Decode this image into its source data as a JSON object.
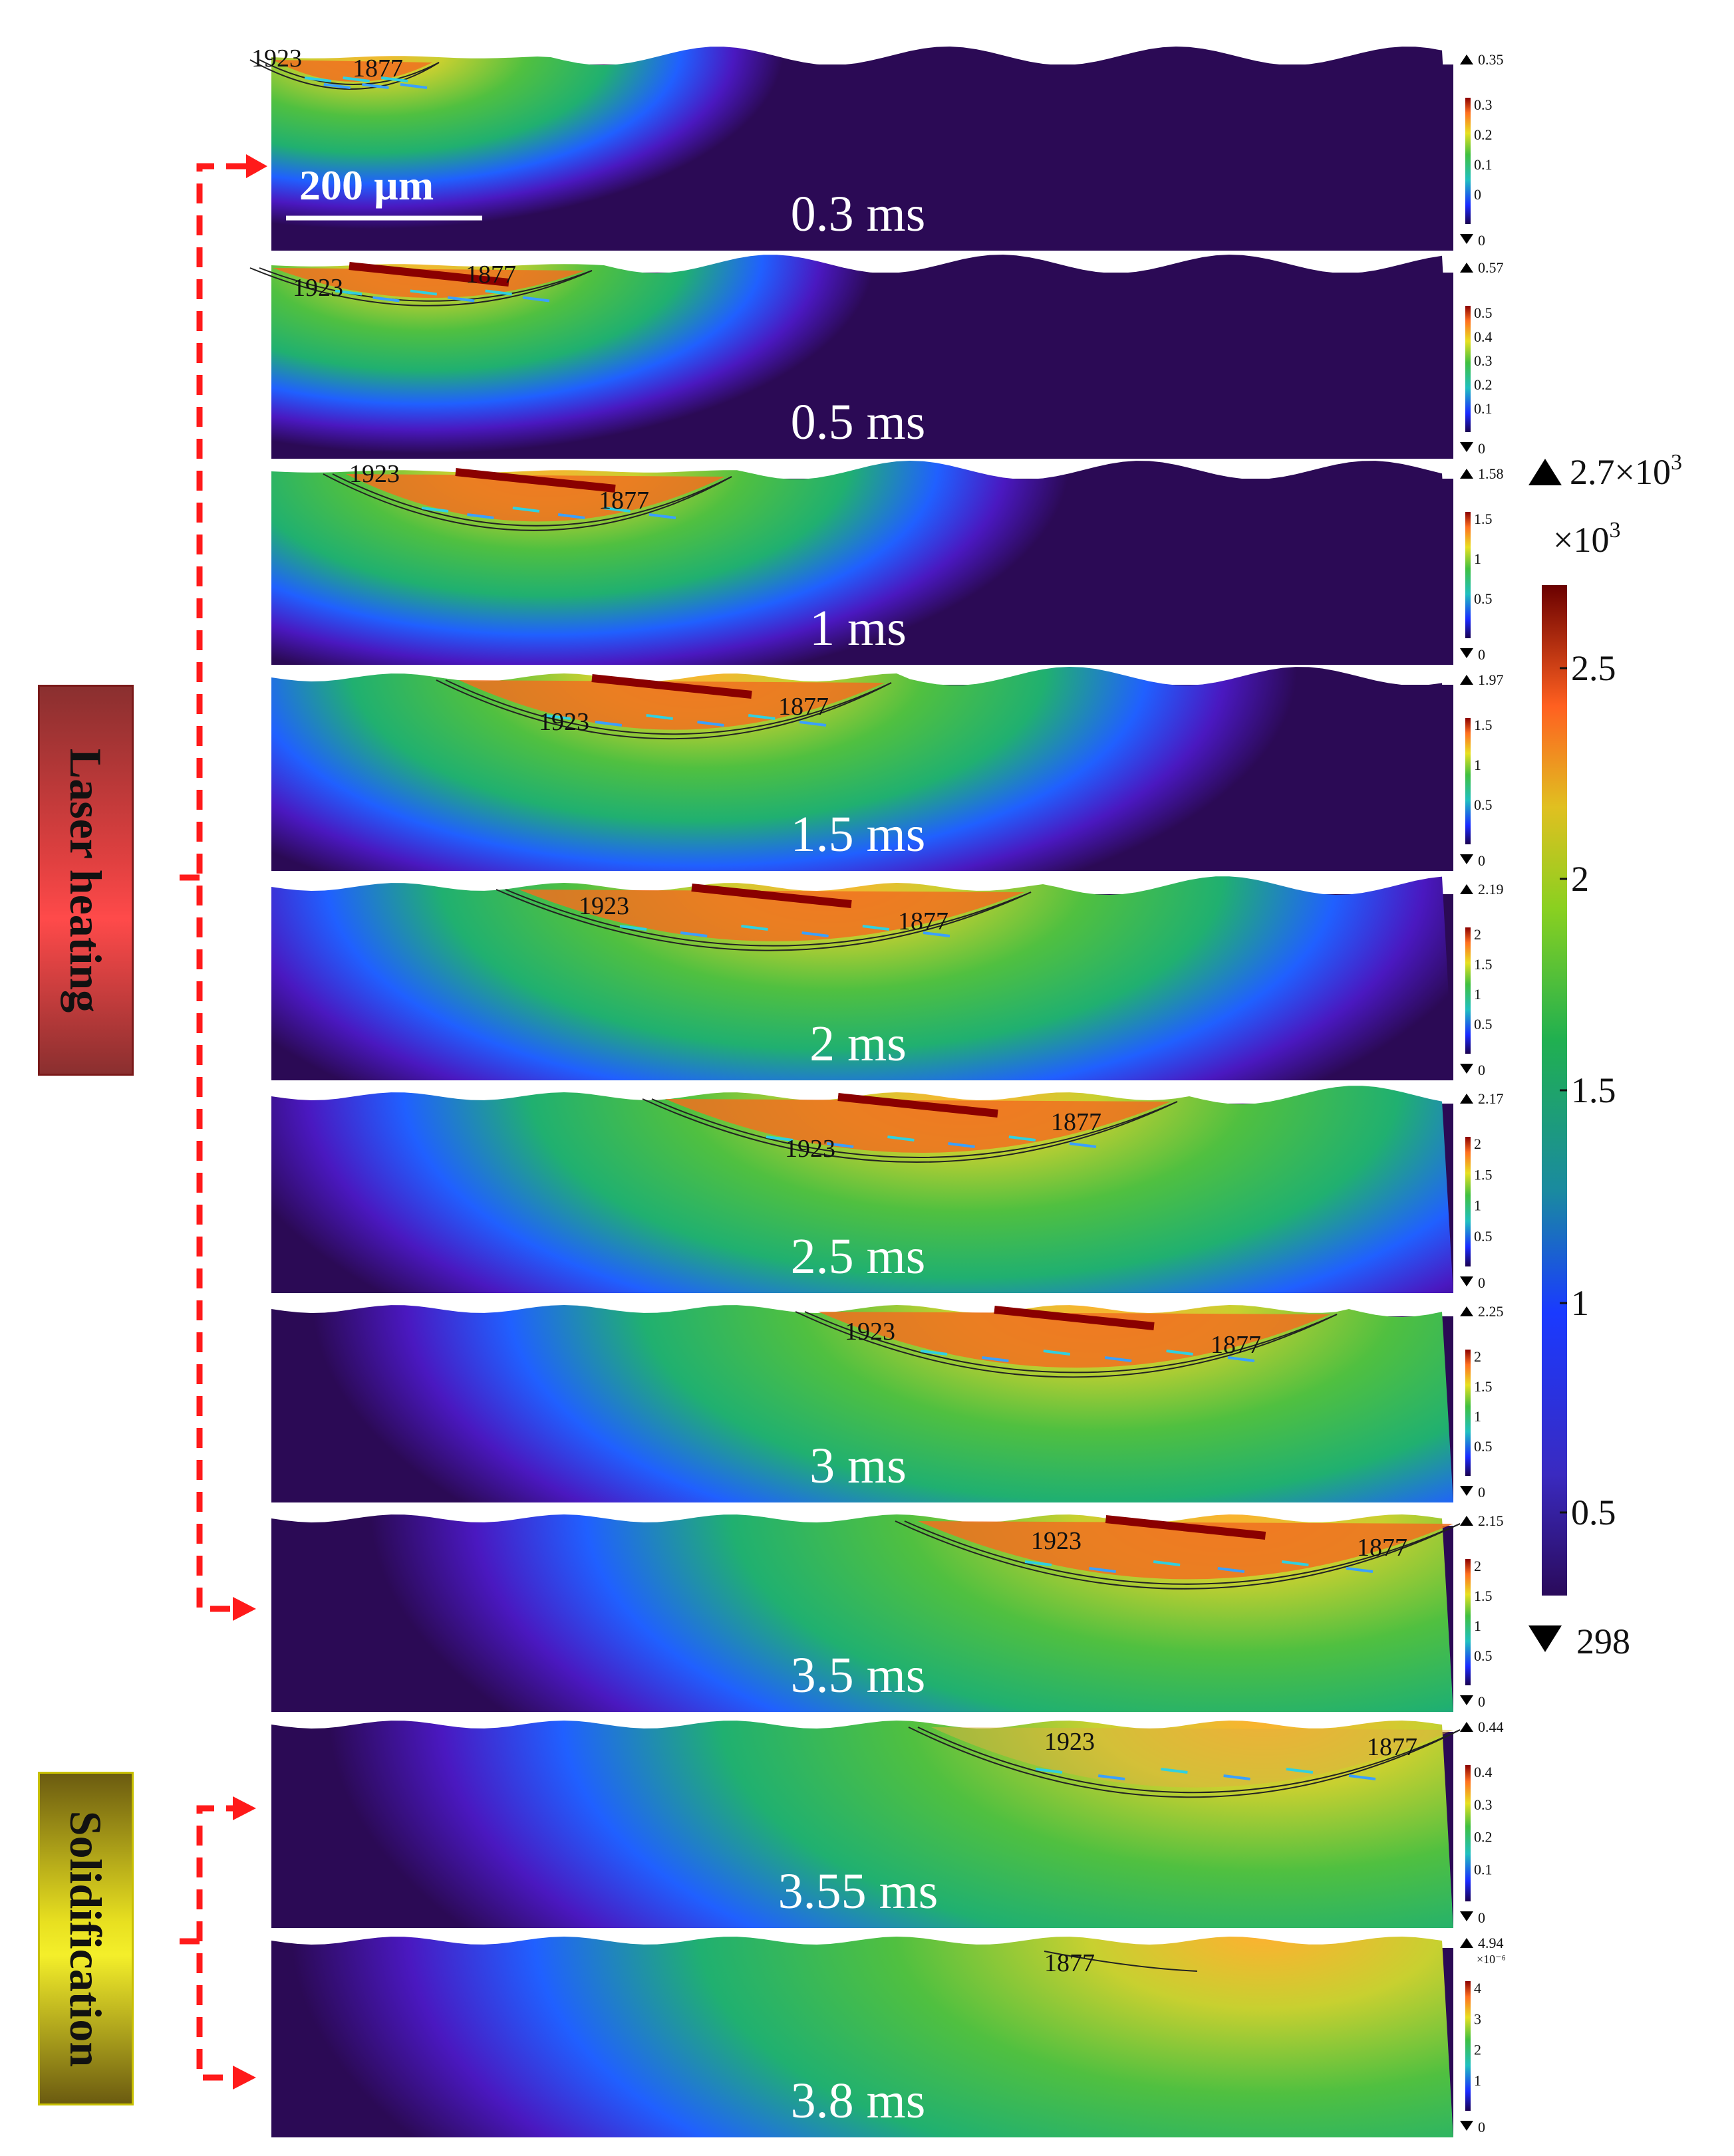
{
  "figure": {
    "scale_bar_label": "200 µm",
    "phases": [
      {
        "name": "Laser heating"
      },
      {
        "name": "Solidification"
      }
    ],
    "colorbar": {
      "max_label": "2.7×10",
      "max_exp": "3",
      "unit_label": "×10",
      "unit_exp": "3",
      "ticks": [
        "2.5",
        "2",
        "1.5",
        "1",
        "0.5"
      ],
      "min_label": "298"
    },
    "panels": [
      {
        "time": "0.3 ms",
        "iso_a": "1923",
        "iso_b": "1877",
        "vmax": "0.35",
        "vmin": "0",
        "vticks": [
          "0.3",
          "0.2",
          "0.1",
          "0"
        ],
        "vexp": ""
      },
      {
        "time": "0.5 ms",
        "iso_a": "1923",
        "iso_b": "1877",
        "vmax": "0.57",
        "vmin": "0",
        "vticks": [
          "0.5",
          "0.4",
          "0.3",
          "0.2",
          "0.1"
        ],
        "vexp": ""
      },
      {
        "time": "1 ms",
        "iso_a": "1923",
        "iso_b": "1877",
        "vmax": "1.58",
        "vmin": "0",
        "vticks": [
          "1.5",
          "1",
          "0.5"
        ],
        "vexp": ""
      },
      {
        "time": "1.5 ms",
        "iso_a": "1923",
        "iso_b": "1877",
        "vmax": "1.97",
        "vmin": "0",
        "vticks": [
          "1.5",
          "1",
          "0.5"
        ],
        "vexp": ""
      },
      {
        "time": "2 ms",
        "iso_a": "1923",
        "iso_b": "1877",
        "vmax": "2.19",
        "vmin": "0",
        "vticks": [
          "2",
          "1.5",
          "1",
          "0.5"
        ],
        "vexp": ""
      },
      {
        "time": "2.5 ms",
        "iso_a": "1923",
        "iso_b": "1877",
        "vmax": "2.17",
        "vmin": "0",
        "vticks": [
          "2",
          "1.5",
          "1",
          "0.5"
        ],
        "vexp": ""
      },
      {
        "time": "3 ms",
        "iso_a": "1923",
        "iso_b": "1877",
        "vmax": "2.25",
        "vmin": "0",
        "vticks": [
          "2",
          "1.5",
          "1",
          "0.5"
        ],
        "vexp": ""
      },
      {
        "time": "3.5 ms",
        "iso_a": "1923",
        "iso_b": "1877",
        "vmax": "2.15",
        "vmin": "0",
        "vticks": [
          "2",
          "1.5",
          "1",
          "0.5"
        ],
        "vexp": ""
      },
      {
        "time": "3.55 ms",
        "iso_a": "1923",
        "iso_b": "1877",
        "vmax": "0.44",
        "vmin": "0",
        "vticks": [
          "0.4",
          "0.3",
          "0.2",
          "0.1"
        ],
        "vexp": ""
      },
      {
        "time": "3.8 ms",
        "iso_a": "",
        "iso_b": "1877",
        "vmax": "4.94",
        "vmin": "0",
        "vticks": [
          "4",
          "3",
          "2",
          "1"
        ],
        "vexp": "×10⁻⁶"
      }
    ]
  },
  "colors": {
    "arrow_red": "#ff1a1a",
    "background_purple": "#2b0a55"
  }
}
